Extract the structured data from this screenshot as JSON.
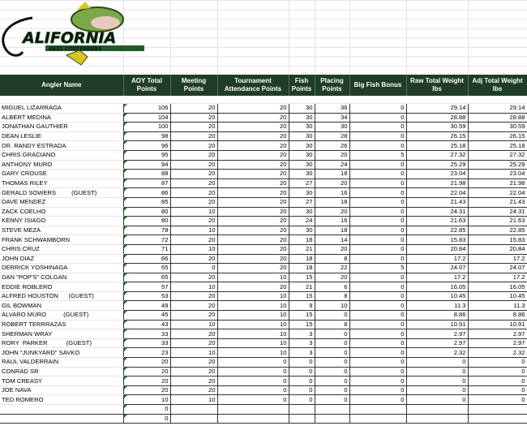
{
  "logo": {
    "text": "CALIFORNIA",
    "subtext": "BASS CONTENDERS",
    "colors": {
      "green": "#1f5a2a",
      "black": "#111111",
      "yellow": "#d9c622"
    }
  },
  "header": {
    "columns": [
      "Angler Name",
      "AOY Total Points",
      "Meeting Points",
      "Tournament Attendance Points",
      "Fish Points",
      "Placing Points",
      "Big Fish Bonus",
      "Raw Total Weight lbs",
      "Adj Total Weight lbs"
    ],
    "bg_color": "#1f3d27"
  },
  "rows": [
    [
      "MIGUEL LIZARRAGA",
      "106",
      "20",
      "20",
      "30",
      "36",
      "0",
      "29.14",
      "29.14"
    ],
    [
      "ALBERT MEDINA",
      "104",
      "20",
      "20",
      "30",
      "34",
      "0",
      "28.88",
      "28.88"
    ],
    [
      "JONATHAN GAUTHIER",
      "100",
      "20",
      "20",
      "30",
      "30",
      "0",
      "30.59",
      "30.59"
    ],
    [
      "DEAN LESLIE",
      "98",
      "20",
      "20",
      "30",
      "28",
      "0",
      "26.15",
      "26.15"
    ],
    [
      "DR. RANDY ESTRADA",
      "96",
      "20",
      "20",
      "30",
      "26",
      "0",
      "25.18",
      "25.18"
    ],
    [
      "CHRIS GRACIANO",
      "95",
      "20",
      "20",
      "30",
      "20",
      "5",
      "27.32",
      "27.32"
    ],
    [
      "ANTHONY MURO",
      "94",
      "20",
      "20",
      "30",
      "24",
      "0",
      "25.29",
      "25.29"
    ],
    [
      "GARY CROUSE",
      "88",
      "20",
      "20",
      "30",
      "18",
      "0",
      "23.04",
      "23.04"
    ],
    [
      "THOMAS RILEY",
      "87",
      "20",
      "20",
      "27",
      "20",
      "0",
      "21.98",
      "21.98"
    ],
    [
      "GERALD SOWERS         (GUEST)",
      "86",
      "20",
      "20",
      "30",
      "16",
      "0",
      "22.04",
      "22.04"
    ],
    [
      "DAVE MENDEZ",
      "85",
      "20",
      "20",
      "27",
      "18",
      "0",
      "21.43",
      "21.43"
    ],
    [
      "ZACK COELHO",
      "80",
      "10",
      "20",
      "30",
      "20",
      "0",
      "24.31",
      "24.31"
    ],
    [
      "KENNY ISIAGO",
      "80",
      "20",
      "20",
      "24",
      "16",
      "0",
      "21.63",
      "21.63"
    ],
    [
      "STEVE MEZA",
      "78",
      "10",
      "20",
      "30",
      "18",
      "0",
      "22.85",
      "22.85"
    ],
    [
      "FRANK SCHWAMBORN",
      "72",
      "20",
      "20",
      "18",
      "14",
      "0",
      "15.83",
      "15.83"
    ],
    [
      "CHRIS CRUZ",
      "71",
      "10",
      "20",
      "21",
      "20",
      "0",
      "20.84",
      "20.84"
    ],
    [
      "JOHN DIAZ",
      "66",
      "20",
      "20",
      "18",
      "8",
      "0",
      "17.2",
      "17.2"
    ],
    [
      "DERRICK YOSHINAGA",
      "65",
      "0",
      "20",
      "18",
      "22",
      "5",
      "24.07",
      "24.07"
    ],
    [
      "DAN \"POP'S\" COLGAN",
      "65",
      "20",
      "10",
      "15",
      "20",
      "0",
      "17.2",
      "17.2"
    ],
    [
      "EDDIE ROBLERO",
      "57",
      "10",
      "20",
      "21",
      "6",
      "0",
      "16.05",
      "16.05"
    ],
    [
      "ALFRED HOUSTON      (GUEST)",
      "53",
      "20",
      "10",
      "15",
      "8",
      "0",
      "10.45",
      "10.45"
    ],
    [
      "GIL BOWMAN",
      "49",
      "20",
      "10",
      "9",
      "10",
      "0",
      "11.3",
      "11.3"
    ],
    [
      "ALVARO MURO          (GUEST)",
      "45",
      "20",
      "10",
      "15",
      "0",
      "0",
      "8.86",
      "8.86"
    ],
    [
      "ROBERT TERRRAZAS",
      "43",
      "10",
      "10",
      "15",
      "8",
      "0",
      "10.91",
      "10.91"
    ],
    [
      "SHERMAN WRAY",
      "33",
      "20",
      "10",
      "3",
      "0",
      "0",
      "2.97",
      "2.97"
    ],
    [
      "RORY  PARKER           (GUEST)",
      "33",
      "20",
      "10",
      "3",
      "0",
      "0",
      "2.97",
      "2.97"
    ],
    [
      "JOHN \"JUNKYARD\" SAVKO",
      "23",
      "10",
      "10",
      "3",
      "0",
      "0",
      "2.32",
      "2.32"
    ],
    [
      "RAUL VALDERRAIN",
      "20",
      "20",
      "0",
      "0",
      "0",
      "0",
      "0",
      "0"
    ],
    [
      "CONRAD SR",
      "20",
      "20",
      "0",
      "0",
      "0",
      "0",
      "0",
      "0"
    ],
    [
      "TOM CREASY",
      "20",
      "20",
      "0",
      "0",
      "0",
      "0",
      "0",
      "0"
    ],
    [
      "JOE NAVA",
      "20",
      "20",
      "0",
      "0",
      "0",
      "0",
      "0",
      "0"
    ],
    [
      "TED ROMERO",
      "10",
      "10",
      "0",
      "0",
      "0",
      "0",
      "0",
      "0"
    ],
    [
      "",
      "0",
      "",
      "",
      "",
      "",
      "",
      "",
      ""
    ],
    [
      "",
      "0",
      "",
      "",
      "",
      "",
      "",
      "",
      ""
    ]
  ]
}
